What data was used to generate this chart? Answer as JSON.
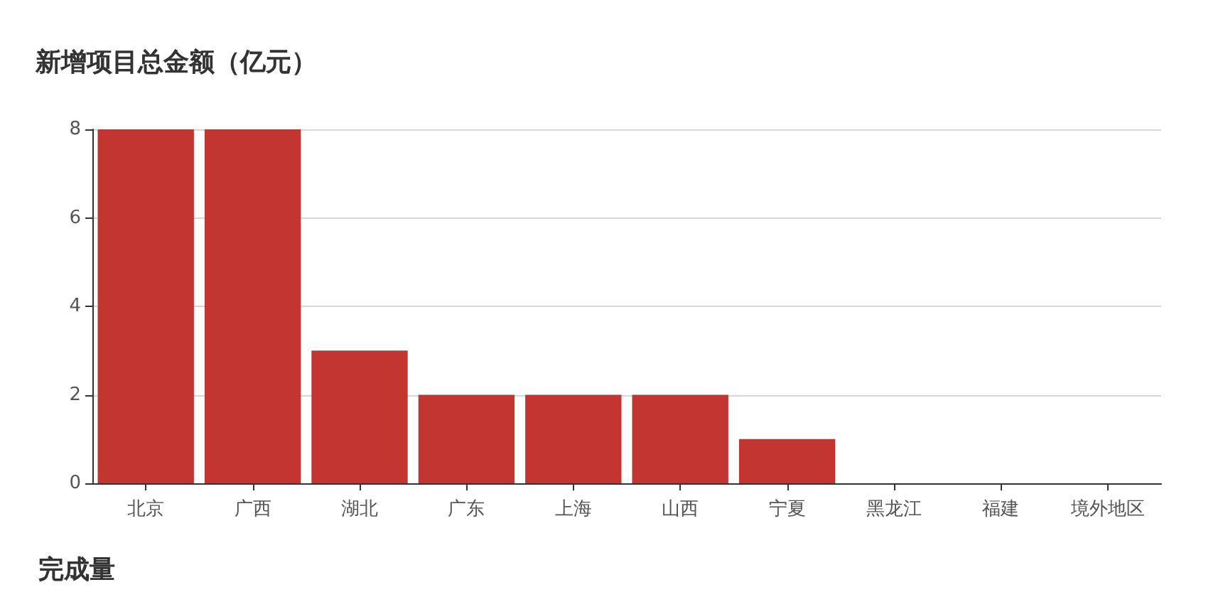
{
  "chart_data": {
    "type": "bar",
    "title": "新增项目总金额（亿元）",
    "categories": [
      "北京",
      "广西",
      "湖北",
      "广东",
      "上海",
      "山西",
      "宁夏",
      "黑龙江",
      "福建",
      "境外地区"
    ],
    "values": [
      8,
      8,
      3,
      2,
      2,
      2,
      1,
      0,
      0,
      0
    ],
    "color": "#c23531",
    "ylim": [
      0,
      8
    ],
    "yticks": [
      0,
      2,
      4,
      6,
      8
    ],
    "grid": "y",
    "annotations": [
      "完成量"
    ]
  }
}
